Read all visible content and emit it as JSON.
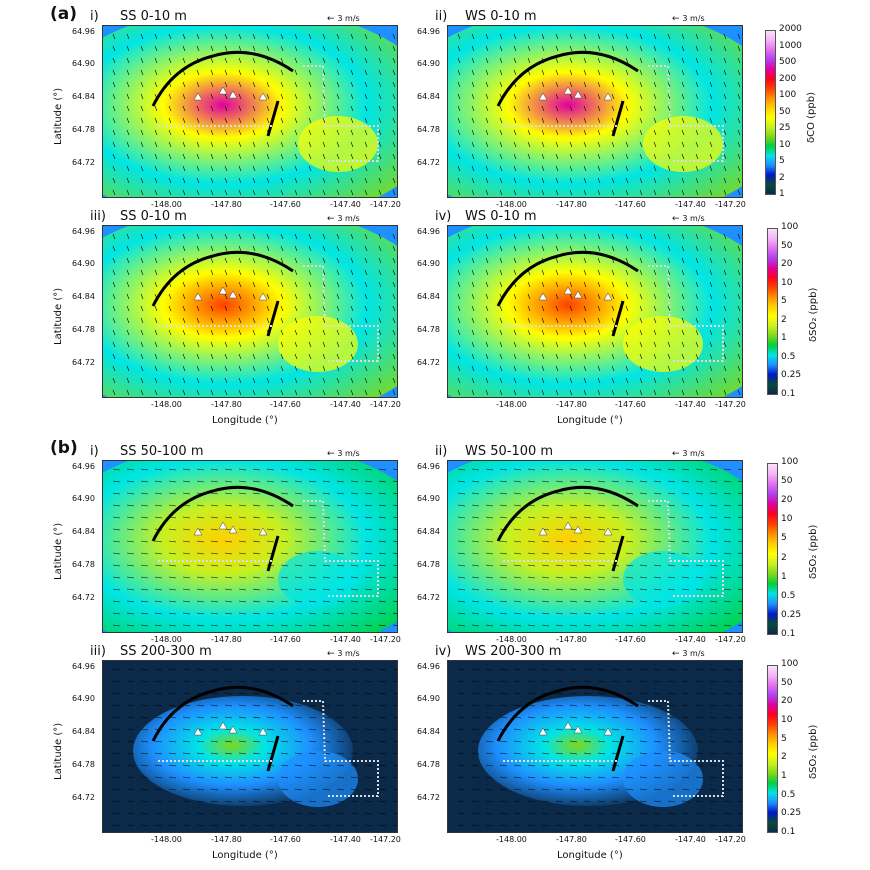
{
  "section_a": "(a)",
  "section_b": "(b)",
  "scale_label": "3 m/s",
  "xlabel": "Longitude (°)",
  "ylabel": "Latitude (°)",
  "lon_ticks": [
    "-148.00",
    "-147.80",
    "-147.60",
    "-147.40",
    "-147.20"
  ],
  "lat_ticks": [
    "64.96",
    "64.90",
    "64.84",
    "64.78",
    "64.72"
  ],
  "panels": [
    {
      "label": "i)",
      "title": "SS 0-10 m",
      "section": "a",
      "species": "CO",
      "intensity": 1.0
    },
    {
      "label": "ii)",
      "title": "WS 0-10 m",
      "section": "a",
      "species": "CO",
      "intensity": 0.8
    },
    {
      "label": "iii)",
      "title": "SS 0-10 m",
      "section": "a",
      "species": "SO2",
      "intensity": 0.9
    },
    {
      "label": "iv)",
      "title": "WS 0-10 m",
      "section": "a",
      "species": "SO2",
      "intensity": 0.85
    },
    {
      "label": "i)",
      "title": "SS 50-100 m",
      "section": "b",
      "species": "SO2",
      "intensity": 0.5
    },
    {
      "label": "ii)",
      "title": "WS 50-100 m",
      "section": "b",
      "species": "SO2",
      "intensity": 0.5
    },
    {
      "label": "iii)",
      "title": "SS 200-300 m",
      "section": "b",
      "species": "SO2",
      "intensity": 0.2
    },
    {
      "label": "iv)",
      "title": "WS 200-300 m",
      "section": "b",
      "species": "SO2",
      "intensity": 0.25
    }
  ],
  "colorbars": {
    "co": {
      "label": "δCO (ppb)",
      "ticks": [
        "2000",
        "1000",
        "500",
        "200",
        "100",
        "50",
        "25",
        "10",
        "5",
        "2",
        "1"
      ]
    },
    "so2": {
      "label": "δSO₂ (ppb)",
      "ticks": [
        "100",
        "50",
        "20",
        "10",
        "5",
        "2",
        "1",
        "0.5",
        "0.25",
        "0.1"
      ]
    }
  },
  "colors": {
    "scale": [
      "#0b2a4a",
      "#0a4a3a",
      "#0018c8",
      "#1e90ff",
      "#00e5e5",
      "#00d040",
      "#7fd81a",
      "#c8f020",
      "#ffff00",
      "#ffd000",
      "#ff9000",
      "#ff4000",
      "#ff0020",
      "#e000a0",
      "#b040f0",
      "#e070f0",
      "#f4b4f4",
      "#fae0fa"
    ]
  }
}
